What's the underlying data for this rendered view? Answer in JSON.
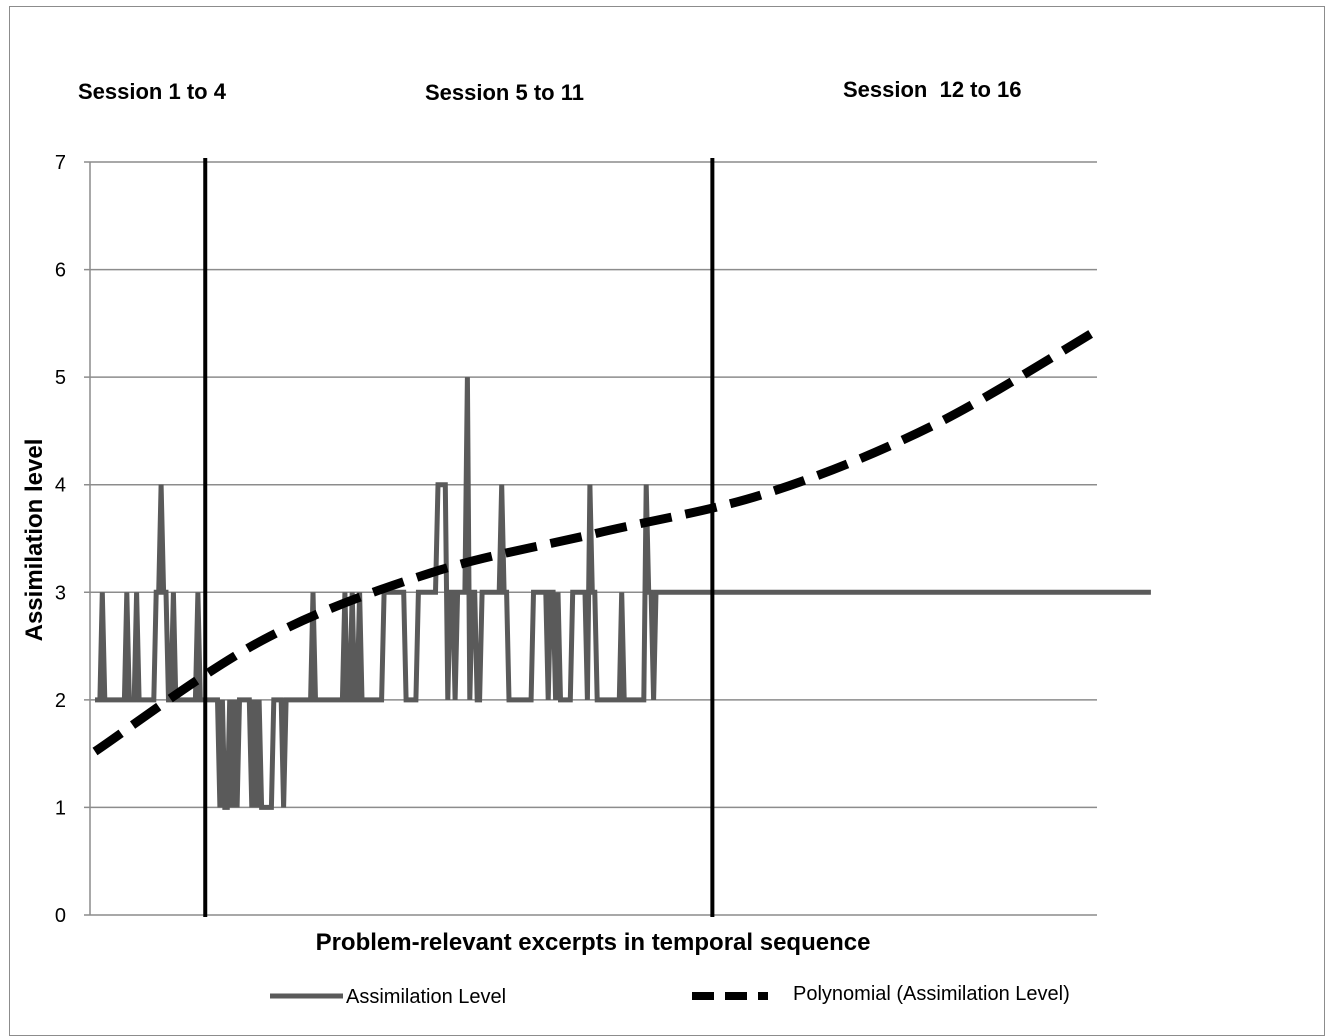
{
  "chart_data": {
    "type": "line",
    "title": "",
    "xlabel": "Problem-relevant excerpts in temporal sequence",
    "ylabel": "Assimilation level",
    "ylim": [
      0,
      7
    ],
    "yticks": [
      "0",
      "1",
      "2",
      "3",
      "4",
      "5",
      "6",
      "7"
    ],
    "grid": true,
    "legend_placement": "bottom",
    "session_labels": [
      "Session 1 to 4",
      "Session 5 to 11",
      "Session  12 to 16"
    ],
    "session_boundaries_x": [
      45,
      252
    ],
    "x_count": 410,
    "series": [
      {
        "name": "Assimilation Level",
        "color": "#5a5a5a",
        "values": [
          2,
          2,
          2,
          3,
          2,
          2,
          2,
          2,
          2,
          2,
          2,
          2,
          2,
          3,
          2,
          2,
          2,
          3,
          2,
          2,
          2,
          2,
          2,
          2,
          2,
          3,
          3,
          4,
          3,
          3,
          2,
          2,
          3,
          2,
          2,
          2,
          2,
          2,
          2,
          2,
          2,
          2,
          3,
          2,
          2,
          2,
          2,
          2,
          2,
          2,
          2,
          1,
          2,
          1,
          1,
          2,
          1,
          2,
          1,
          2,
          2,
          2,
          2,
          2,
          1,
          2,
          1,
          2,
          1,
          1,
          1,
          1,
          1,
          2,
          2,
          2,
          2,
          1,
          2,
          2,
          2,
          2,
          2,
          2,
          2,
          2,
          2,
          2,
          2,
          3,
          2,
          2,
          2,
          2,
          2,
          2,
          2,
          2,
          2,
          2,
          2,
          2,
          3,
          2,
          2,
          3,
          2,
          2,
          3,
          2,
          2,
          2,
          2,
          2,
          2,
          2,
          2,
          2,
          3,
          3,
          3,
          3,
          3,
          3,
          3,
          3,
          3,
          2,
          2,
          2,
          2,
          2,
          3,
          3,
          3,
          3,
          3,
          3,
          3,
          3,
          4,
          4,
          4,
          4,
          2,
          3,
          3,
          2,
          3,
          3,
          3,
          3,
          5,
          2,
          3,
          3,
          2,
          2,
          3,
          3,
          3,
          3,
          3,
          3,
          3,
          3,
          4,
          3,
          3,
          2,
          2,
          2,
          2,
          2,
          2,
          2,
          2,
          2,
          2,
          3,
          3,
          3,
          3,
          3,
          3,
          2,
          3,
          3,
          2,
          3,
          2,
          2,
          2,
          2,
          2,
          3,
          3,
          3,
          3,
          3,
          3,
          2,
          4,
          3,
          3,
          2,
          2,
          2,
          2,
          2,
          2,
          2,
          2,
          2,
          2,
          3,
          2,
          2,
          2,
          2,
          2,
          2,
          2,
          2,
          2,
          4,
          3,
          3,
          2,
          3,
          3,
          3,
          3,
          3,
          3,
          3,
          3,
          3,
          3,
          3,
          3,
          3,
          3,
          3,
          3,
          3,
          3,
          3,
          3,
          3,
          3,
          3,
          3,
          3,
          3,
          3,
          3,
          3,
          3,
          3,
          3,
          3,
          3,
          3,
          3,
          3,
          3,
          3,
          3,
          3,
          3,
          3,
          3,
          3,
          3,
          3,
          3,
          3,
          3,
          3,
          3,
          3,
          3,
          3,
          3,
          3,
          3,
          3,
          3,
          3,
          3,
          3,
          3,
          3,
          3,
          3,
          3,
          3,
          3,
          3,
          3,
          3,
          3,
          3,
          3,
          3,
          3,
          3,
          3,
          3,
          3,
          3,
          3,
          3,
          3,
          3,
          3,
          3,
          3,
          3,
          3,
          3,
          3,
          3,
          3,
          3,
          3,
          3,
          3,
          3,
          3,
          3,
          3,
          3,
          3,
          3,
          3,
          3,
          3,
          3,
          3,
          3,
          3,
          3,
          3,
          3,
          3,
          3,
          3,
          3,
          3,
          3,
          3,
          3,
          3,
          3,
          3,
          3,
          3,
          3,
          3,
          3,
          3,
          3,
          3,
          3,
          3,
          3,
          3,
          3,
          3,
          3,
          3,
          3,
          3,
          3,
          3,
          3,
          3,
          3,
          3,
          3,
          3,
          3,
          3,
          3,
          3,
          3,
          3,
          3,
          3,
          3,
          3,
          3,
          3,
          3,
          3,
          3,
          3,
          3,
          3,
          3,
          3,
          3,
          3,
          3,
          3,
          3,
          3,
          3,
          3,
          3,
          3,
          3,
          3,
          3,
          3,
          3,
          3,
          3,
          3,
          3,
          3,
          3,
          3,
          3,
          3,
          3,
          3,
          3,
          3,
          3
        ]
      },
      {
        "name": "Polynomial (Assimilation Level)",
        "color": "#000000",
        "type": "polynomial-trend",
        "x": [
          0,
          68,
          137,
          205,
          274,
          342,
          410
        ],
        "values": [
          1.52,
          2.55,
          3.18,
          3.55,
          3.92,
          4.55,
          5.45
        ]
      }
    ]
  },
  "legend": {
    "series_label": "Assimilation Level",
    "trend_label": "Polynomial (Assimilation Level)"
  }
}
